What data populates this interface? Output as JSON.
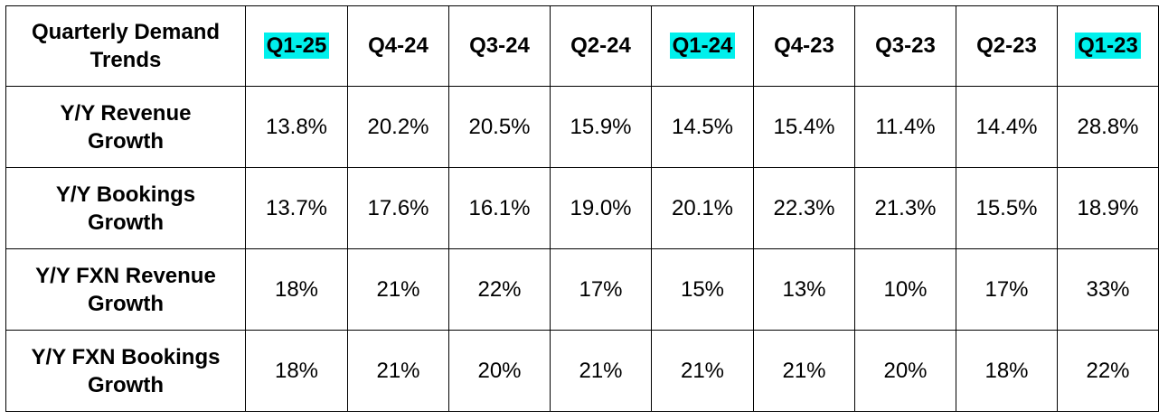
{
  "chart_data": {
    "type": "table",
    "title_lines": [
      "Quarterly Demand",
      "Trends"
    ],
    "highlight_color": "#00f0ec",
    "columns": [
      {
        "label": "Q1-25",
        "highlighted": true
      },
      {
        "label": "Q4-24",
        "highlighted": false
      },
      {
        "label": "Q3-24",
        "highlighted": false
      },
      {
        "label": "Q2-24",
        "highlighted": false
      },
      {
        "label": "Q1-24",
        "highlighted": true
      },
      {
        "label": "Q4-23",
        "highlighted": false
      },
      {
        "label": "Q3-23",
        "highlighted": false
      },
      {
        "label": "Q2-23",
        "highlighted": false
      },
      {
        "label": "Q1-23",
        "highlighted": true
      }
    ],
    "rows": [
      {
        "label_lines": [
          "Y/Y Revenue",
          "Growth"
        ],
        "values": [
          "13.8%",
          "20.2%",
          "20.5%",
          "15.9%",
          "14.5%",
          "15.4%",
          "11.4%",
          "14.4%",
          "28.8%"
        ]
      },
      {
        "label_lines": [
          "Y/Y Bookings",
          "Growth"
        ],
        "values": [
          "13.7%",
          "17.6%",
          "16.1%",
          "19.0%",
          "20.1%",
          "22.3%",
          "21.3%",
          "15.5%",
          "18.9%"
        ]
      },
      {
        "label_lines": [
          "Y/Y FXN Revenue",
          "Growth"
        ],
        "values": [
          "18%",
          "21%",
          "22%",
          "17%",
          "15%",
          "13%",
          "10%",
          "17%",
          "33%"
        ]
      },
      {
        "label_lines": [
          "Y/Y FXN Bookings",
          "Growth"
        ],
        "values": [
          "18%",
          "21%",
          "20%",
          "21%",
          "21%",
          "21%",
          "20%",
          "18%",
          "22%"
        ]
      }
    ]
  }
}
